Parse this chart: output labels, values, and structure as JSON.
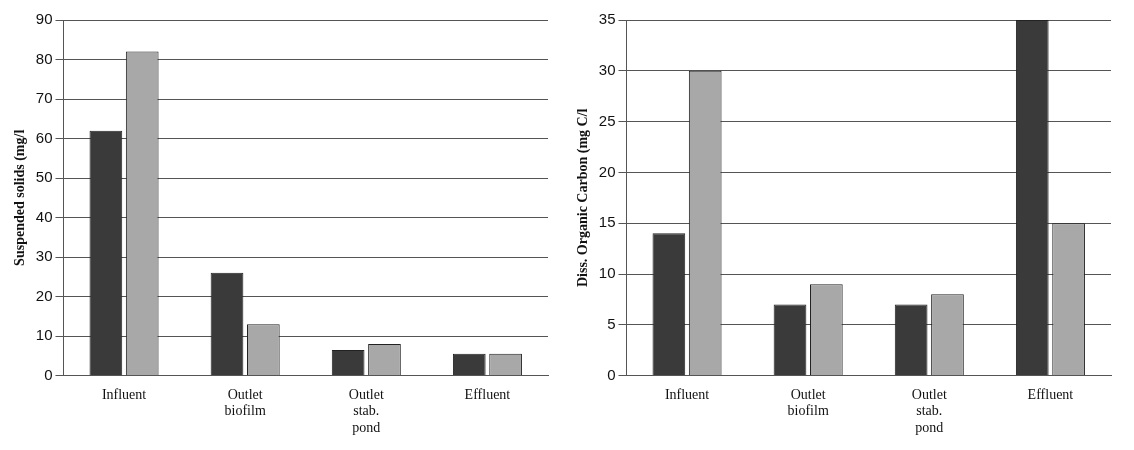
{
  "chart_data": [
    {
      "type": "bar",
      "ylabel": "Suspended solids (mg/l",
      "categories": [
        "Influent",
        "Outlet biofilm",
        "Outlet stab. pond",
        "Effluent"
      ],
      "series": [
        {
          "color": "#3a3a3a",
          "values": [
            62,
            26,
            6.5,
            5.5
          ]
        },
        {
          "color": "#a8a8a8",
          "values": [
            82,
            13,
            8,
            5.5
          ]
        }
      ],
      "ylim": [
        0,
        90
      ],
      "yticks": [
        0,
        10,
        20,
        30,
        40,
        50,
        60,
        70,
        80,
        90
      ],
      "grid": "y",
      "legend": false
    },
    {
      "type": "bar",
      "ylabel": "Diss. Organic Carbon (mg C/l",
      "categories": [
        "Influent",
        "Outlet biofilm",
        "Outlet stab. pond",
        "Effluent"
      ],
      "series": [
        {
          "color": "#3a3a3a",
          "values": [
            14,
            7,
            7,
            35
          ]
        },
        {
          "color": "#a8a8a8",
          "values": [
            30,
            9,
            8,
            15
          ]
        }
      ],
      "ylim": [
        0,
        35
      ],
      "yticks": [
        0,
        5,
        10,
        15,
        20,
        25,
        30,
        35
      ],
      "grid": "y",
      "legend": false
    }
  ]
}
